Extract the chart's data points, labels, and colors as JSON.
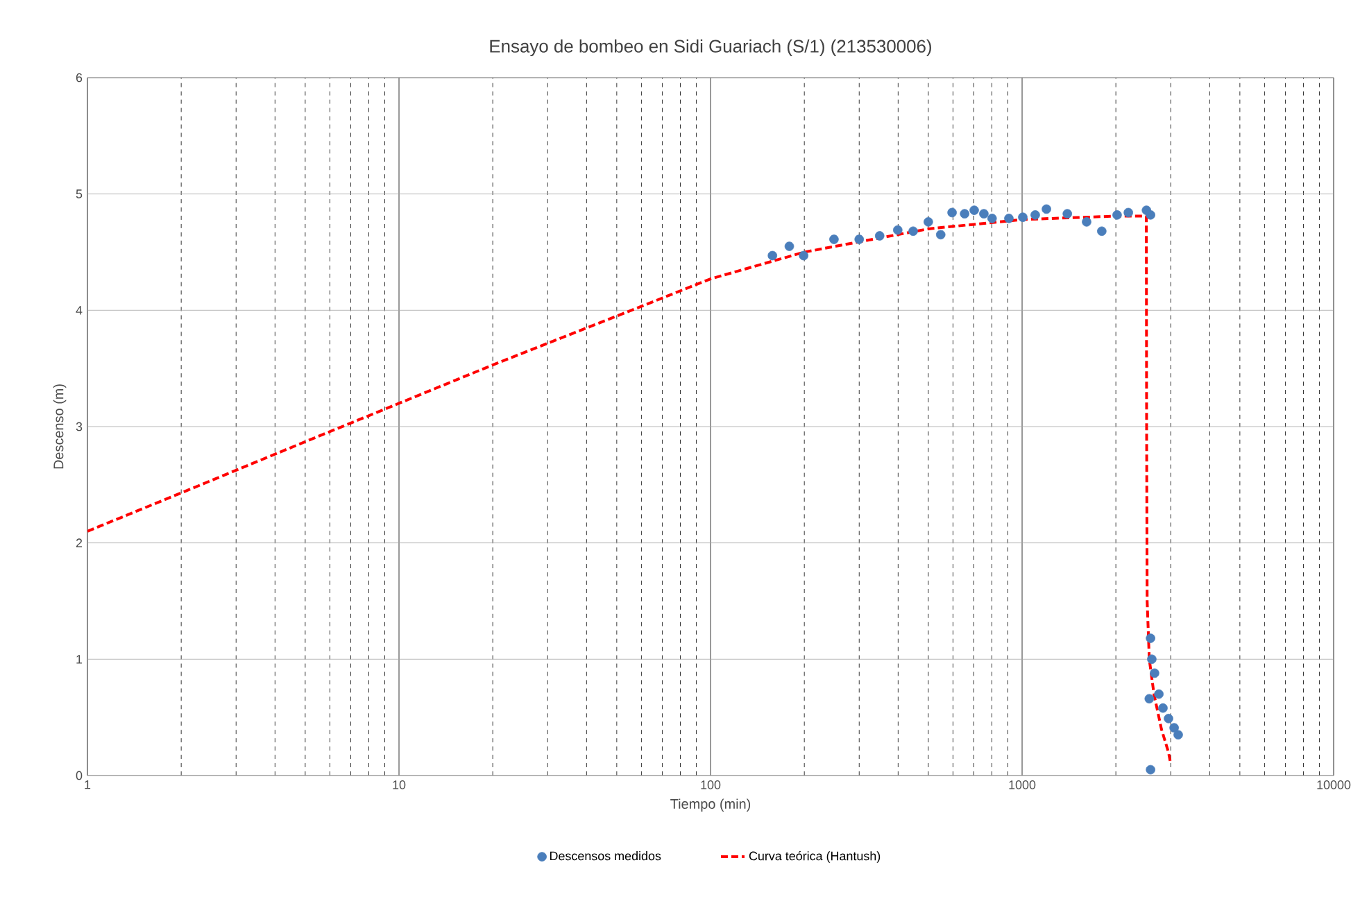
{
  "chart_data": {
    "type": "scatter",
    "title": "Ensayo de bombeo en Sidi Guariach (S/1) (213530006)",
    "xlabel": "Tiempo (min)",
    "ylabel": "Descenso (m)",
    "log": "x",
    "xlim": [
      1,
      10000
    ],
    "xticks": [
      1,
      10,
      100,
      1000,
      10000
    ],
    "ylim": [
      0,
      6
    ],
    "yticks": [
      0,
      1,
      2,
      3,
      4,
      5,
      6
    ],
    "grid": true,
    "legend": "bottom",
    "series": [
      {
        "name": "Descensos medidos",
        "marker": "circle",
        "color": "#4a7ebb",
        "x": [
          158,
          179,
          199,
          249,
          300,
          349,
          399,
          447,
          500,
          548,
          596,
          654,
          702,
          754,
          801,
          907,
          1005,
          1102,
          1197,
          1397,
          1611,
          1802,
          2018,
          2193,
          2507,
          2584,
          2584,
          2608,
          2662,
          2748,
          2832,
          2951,
          3076,
          3170,
          2560,
          2584
        ],
        "values": [
          4.47,
          4.55,
          4.47,
          4.61,
          4.61,
          4.64,
          4.69,
          4.68,
          4.76,
          4.65,
          4.84,
          4.83,
          4.86,
          4.83,
          4.79,
          4.79,
          4.8,
          4.82,
          4.87,
          4.83,
          4.76,
          4.68,
          4.82,
          4.84,
          4.86,
          4.82,
          1.18,
          1.0,
          0.88,
          0.7,
          0.58,
          0.49,
          0.41,
          0.35,
          0.66,
          0.05
        ]
      },
      {
        "name": "Curva teórica (Hantush)",
        "type": "line",
        "marker": "none",
        "line_style": "dashed",
        "color": "#ff0000",
        "x": [
          1,
          2,
          5,
          10,
          20,
          50,
          100,
          200,
          500,
          1000,
          2000,
          2505,
          2510,
          2520,
          2560,
          2650,
          2800,
          2950,
          3000
        ],
        "values": [
          2.1,
          2.43,
          2.87,
          3.2,
          3.53,
          3.95,
          4.27,
          4.5,
          4.7,
          4.78,
          4.81,
          4.81,
          3.0,
          1.5,
          1.0,
          0.7,
          0.4,
          0.2,
          0.1
        ]
      }
    ]
  }
}
